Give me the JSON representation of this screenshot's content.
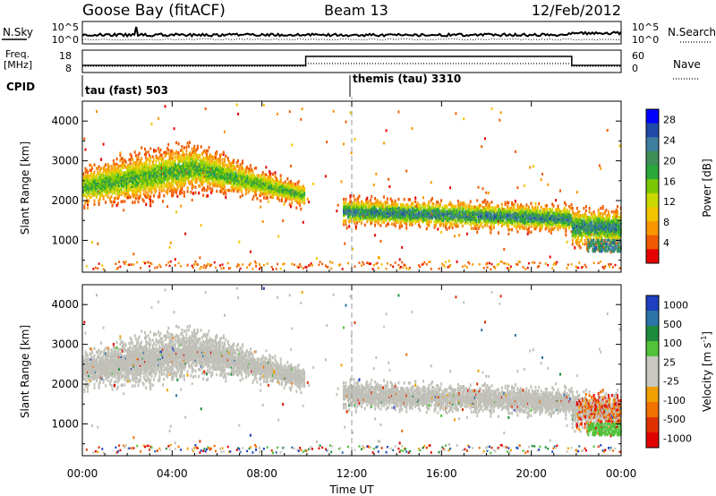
{
  "header": {
    "station": "Goose Bay (fitACF)",
    "beam": "Beam 13",
    "date": "12/Feb/2012"
  },
  "top_panels": {
    "noise_left_label": "N.Sky",
    "noise_left_ticks": [
      "10^5",
      "10^0"
    ],
    "noise_right_label": "N.Search",
    "noise_right_ticks": [
      "10^5",
      "10^0"
    ],
    "freq_label_1": "Freq.",
    "freq_label_2": "[MHz]",
    "freq_ticks": [
      "18",
      "8"
    ],
    "nave_label": "Nave",
    "nave_ticks": [
      "60",
      "0"
    ],
    "cpid_label": "CPID",
    "cpid_segments": [
      {
        "label": "tau (fast) 503",
        "start_hour": 0
      },
      {
        "label": "themis (tau) 3310",
        "start_hour": 12
      }
    ]
  },
  "chart_data": [
    {
      "type": "heatmap",
      "title": "",
      "xlabel": "Time UT",
      "ylabel": "Slant Range [km]",
      "xlim": [
        0,
        24
      ],
      "ylim": [
        200,
        4500
      ],
      "x_tick_labels": [
        "00:00",
        "04:00",
        "08:00",
        "12:00",
        "16:00",
        "20:00",
        "00:00"
      ],
      "y_tick_labels": [
        "1000",
        "2000",
        "3000",
        "4000"
      ],
      "colorbar_label": "Power [dB]",
      "colorbar_ticks": [
        "4",
        "8",
        "12",
        "16",
        "20",
        "24",
        "28"
      ],
      "colorbar_colors": [
        "#0000ff",
        "#1f4aa8",
        "#3e7fa0",
        "#3f8f58",
        "#2aa83a",
        "#7ac800",
        "#c8d800",
        "#f2c400",
        "#f89600",
        "#f05a00",
        "#e60000"
      ],
      "dashed_vertical_at_hour": 12,
      "echo_regions": [
        {
          "from_hour": 0.0,
          "to_hour": 9.9,
          "range_km": [
            1600,
            3300
          ],
          "peak_range_km_at_start": 2300,
          "peak_range_km_mid": 2800,
          "peak_range_km_end": 2100,
          "max_power_db": 20
        },
        {
          "from_hour": 11.6,
          "to_hour": 21.8,
          "range_km": [
            1200,
            2400
          ],
          "peak_range_km": 1500,
          "max_power_db": 26
        },
        {
          "from_hour": 21.8,
          "to_hour": 24.0,
          "range_km": [
            700,
            2200
          ],
          "peak_range_km": 1300,
          "max_power_db": 26
        }
      ]
    },
    {
      "type": "heatmap",
      "title": "",
      "xlabel": "Time UT",
      "ylabel": "Slant Range [km]",
      "xlim": [
        0,
        24
      ],
      "ylim": [
        200,
        4500
      ],
      "x_tick_labels": [
        "00:00",
        "04:00",
        "08:00",
        "12:00",
        "16:00",
        "20:00",
        "00:00"
      ],
      "y_tick_labels": [
        "1000",
        "2000",
        "3000",
        "4000"
      ],
      "colorbar_label": "Velocity [m s",
      "colorbar_label_sup": "-1",
      "colorbar_label_end": "]",
      "colorbar_ticks": [
        "1000",
        "500",
        "100",
        "25",
        "-25",
        "-100",
        "-500",
        "-1000"
      ],
      "colorbar_colors": [
        "#1e40c0",
        "#2a74a8",
        "#1c8c3c",
        "#52c23a",
        "#c8c8c0",
        "#c8c8c0",
        "#f0a000",
        "#f07000",
        "#e03000",
        "#e00000"
      ],
      "dashed_vertical_at_hour": 12,
      "ground_scatter_color": "#c0c0b8",
      "echo_regions": [
        {
          "from_hour": 0.0,
          "to_hour": 9.9,
          "range_km": [
            1700,
            3300
          ],
          "dominant": "ground scatter"
        },
        {
          "from_hour": 11.6,
          "to_hour": 21.8,
          "range_km": [
            1300,
            2400
          ],
          "dominant": "ground scatter"
        },
        {
          "from_hour": 21.8,
          "to_hour": 24.0,
          "range_km": [
            700,
            2000
          ],
          "dominant": "mixed velocity"
        }
      ]
    }
  ]
}
